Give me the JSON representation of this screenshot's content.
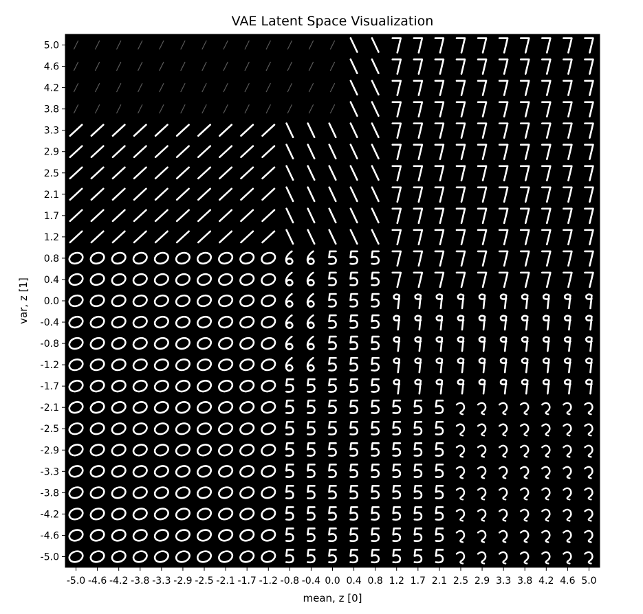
{
  "chart_data": {
    "type": "heatmap",
    "title": "VAE Latent Space Visualization",
    "xlabel": "mean, z [0]",
    "ylabel": "var, z [1]",
    "x_ticks": [
      "-5.0",
      "-4.6",
      "-4.2",
      "-3.8",
      "-3.3",
      "-2.9",
      "-2.5",
      "-2.1",
      "-1.7",
      "-1.2",
      "-0.8",
      "-0.4",
      "0.0",
      "0.4",
      "0.8",
      "1.2",
      "1.7",
      "2.1",
      "2.5",
      "2.9",
      "3.3",
      "3.8",
      "4.2",
      "4.6",
      "5.0"
    ],
    "y_ticks": [
      "5.0",
      "4.6",
      "4.2",
      "3.8",
      "3.3",
      "2.9",
      "2.5",
      "2.1",
      "1.7",
      "1.2",
      "0.8",
      "0.4",
      "0.0",
      "-0.4",
      "-0.8",
      "-1.2",
      "-1.7",
      "-2.1",
      "-2.5",
      "-2.9",
      "-3.3",
      "-3.8",
      "-4.2",
      "-4.6",
      "-5.0"
    ],
    "xlim": [
      -5.0,
      5.0
    ],
    "ylim": [
      -5.0,
      5.0
    ],
    "grid": false,
    "background_color": "#000000",
    "glyph_color": "#ffffff"
  }
}
